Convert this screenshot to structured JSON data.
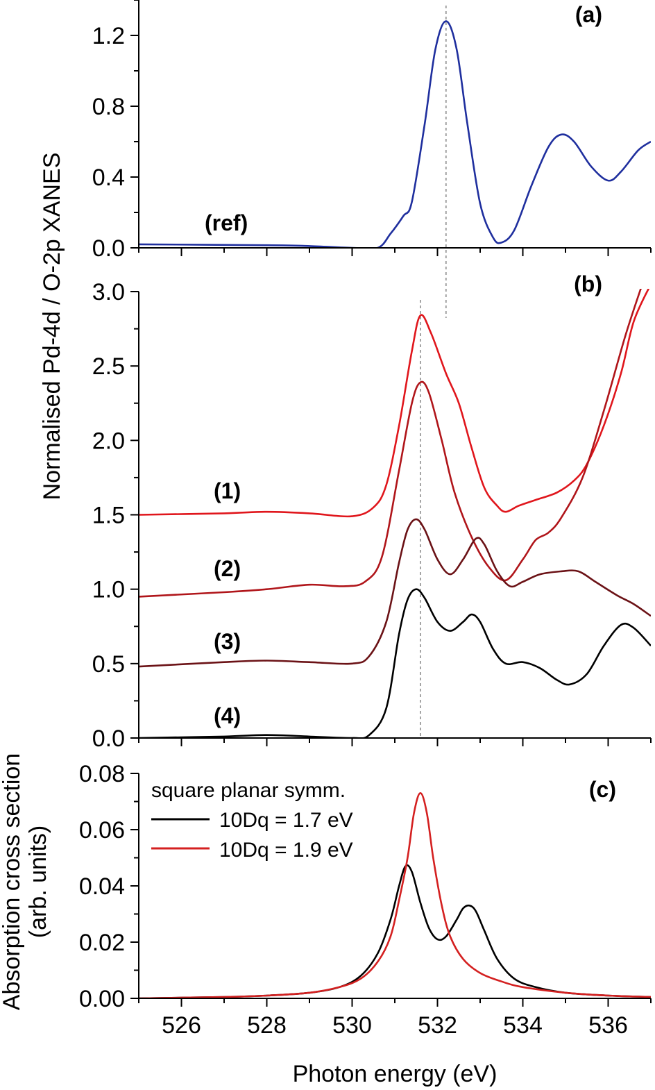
{
  "colors": {
    "ref": "#1f2f9e",
    "s1": "#e0161c",
    "s2": "#b0151a",
    "s3": "#6b1216",
    "s4": "#000000",
    "calc_17": "#000000",
    "calc_19": "#d42020",
    "guide": "#9a9a9a"
  },
  "chart_data": [
    {
      "panel": "a",
      "type": "line",
      "label": "(a)",
      "series_label": "(ref)",
      "ylim": [
        0,
        1.4
      ],
      "yticks": [
        0.0,
        0.4,
        0.8,
        1.2
      ],
      "ytick_labels": [
        "0.0",
        "0.4",
        "0.8",
        "1.2"
      ],
      "guide_x": 532.2,
      "series": [
        {
          "name": "ref",
          "color_key": "ref",
          "points": [
            [
              525,
              0.02
            ],
            [
              528,
              0.015
            ],
            [
              529,
              0.01
            ],
            [
              530,
              0.0
            ],
            [
              530.6,
              0.0
            ],
            [
              530.9,
              0.08
            ],
            [
              531.2,
              0.18
            ],
            [
              531.4,
              0.26
            ],
            [
              531.7,
              0.7
            ],
            [
              531.95,
              1.12
            ],
            [
              532.2,
              1.28
            ],
            [
              532.45,
              1.12
            ],
            [
              532.7,
              0.7
            ],
            [
              533.0,
              0.25
            ],
            [
              533.3,
              0.06
            ],
            [
              533.5,
              0.03
            ],
            [
              533.8,
              0.1
            ],
            [
              534.2,
              0.35
            ],
            [
              534.6,
              0.57
            ],
            [
              534.9,
              0.64
            ],
            [
              535.2,
              0.6
            ],
            [
              535.6,
              0.46
            ],
            [
              536.0,
              0.38
            ],
            [
              536.3,
              0.43
            ],
            [
              536.7,
              0.55
            ],
            [
              537,
              0.6
            ]
          ]
        }
      ]
    },
    {
      "panel": "b",
      "type": "line",
      "label": "(b)",
      "ylim": [
        0,
        3.0
      ],
      "yticks": [
        0.0,
        0.5,
        1.0,
        1.5,
        2.0,
        2.5,
        3.0
      ],
      "ytick_labels": [
        "0.0",
        "0.5",
        "1.0",
        "1.5",
        "2.0",
        "2.5",
        "3.0"
      ],
      "ylabel": "Normalised Pd-4d / O-2p XANES",
      "guide_x": 531.6,
      "series": [
        {
          "name": "(1)",
          "color_key": "s1",
          "points": [
            [
              525,
              1.5
            ],
            [
              527,
              1.51
            ],
            [
              528,
              1.52
            ],
            [
              529,
              1.51
            ],
            [
              530,
              1.49
            ],
            [
              530.5,
              1.55
            ],
            [
              530.8,
              1.7
            ],
            [
              531.1,
              2.1
            ],
            [
              531.4,
              2.6
            ],
            [
              531.6,
              2.84
            ],
            [
              531.85,
              2.72
            ],
            [
              532.2,
              2.45
            ],
            [
              532.5,
              2.25
            ],
            [
              532.8,
              1.95
            ],
            [
              533.1,
              1.68
            ],
            [
              533.4,
              1.56
            ],
            [
              533.6,
              1.52
            ],
            [
              533.9,
              1.56
            ],
            [
              534.3,
              1.6
            ],
            [
              534.8,
              1.65
            ],
            [
              535.2,
              1.73
            ],
            [
              535.5,
              1.84
            ],
            [
              535.9,
              2.1
            ],
            [
              536.3,
              2.45
            ],
            [
              536.6,
              2.8
            ],
            [
              537,
              3.05
            ]
          ]
        },
        {
          "name": "(2)",
          "color_key": "s2",
          "points": [
            [
              525,
              0.95
            ],
            [
              527,
              0.98
            ],
            [
              528,
              1.0
            ],
            [
              529,
              1.03
            ],
            [
              529.8,
              1.02
            ],
            [
              530.3,
              1.05
            ],
            [
              530.7,
              1.22
            ],
            [
              531.1,
              1.8
            ],
            [
              531.4,
              2.25
            ],
            [
              531.6,
              2.39
            ],
            [
              531.8,
              2.32
            ],
            [
              532.1,
              2.0
            ],
            [
              532.4,
              1.65
            ],
            [
              532.8,
              1.35
            ],
            [
              533.2,
              1.15
            ],
            [
              533.6,
              1.06
            ],
            [
              534.0,
              1.2
            ],
            [
              534.3,
              1.33
            ],
            [
              534.6,
              1.38
            ],
            [
              534.9,
              1.48
            ],
            [
              535.4,
              1.75
            ],
            [
              535.9,
              2.2
            ],
            [
              536.4,
              2.7
            ],
            [
              536.8,
              3.05
            ]
          ]
        },
        {
          "name": "(3)",
          "color_key": "s3",
          "points": [
            [
              525,
              0.48
            ],
            [
              527,
              0.51
            ],
            [
              528,
              0.52
            ],
            [
              529,
              0.51
            ],
            [
              530,
              0.5
            ],
            [
              530.4,
              0.55
            ],
            [
              530.8,
              0.78
            ],
            [
              531.1,
              1.18
            ],
            [
              531.3,
              1.4
            ],
            [
              531.5,
              1.47
            ],
            [
              531.7,
              1.4
            ],
            [
              532.0,
              1.2
            ],
            [
              532.3,
              1.1
            ],
            [
              532.6,
              1.2
            ],
            [
              532.9,
              1.34
            ],
            [
              533.1,
              1.3
            ],
            [
              533.4,
              1.12
            ],
            [
              533.7,
              1.02
            ],
            [
              534.0,
              1.05
            ],
            [
              534.4,
              1.1
            ],
            [
              534.9,
              1.12
            ],
            [
              535.3,
              1.12
            ],
            [
              535.7,
              1.05
            ],
            [
              536.2,
              0.96
            ],
            [
              536.6,
              0.9
            ],
            [
              537,
              0.82
            ]
          ]
        },
        {
          "name": "(4)",
          "color_key": "s4",
          "points": [
            [
              525,
              0.0
            ],
            [
              527,
              0.01
            ],
            [
              528,
              0.02
            ],
            [
              529,
              0.01
            ],
            [
              530,
              0.0
            ],
            [
              530.4,
              0.02
            ],
            [
              530.8,
              0.2
            ],
            [
              531.1,
              0.7
            ],
            [
              531.3,
              0.93
            ],
            [
              531.5,
              1.0
            ],
            [
              531.7,
              0.94
            ],
            [
              532.0,
              0.78
            ],
            [
              532.3,
              0.72
            ],
            [
              532.6,
              0.78
            ],
            [
              532.8,
              0.83
            ],
            [
              533.0,
              0.78
            ],
            [
              533.3,
              0.6
            ],
            [
              533.6,
              0.5
            ],
            [
              534.0,
              0.51
            ],
            [
              534.4,
              0.47
            ],
            [
              534.8,
              0.39
            ],
            [
              535.1,
              0.36
            ],
            [
              535.5,
              0.43
            ],
            [
              535.9,
              0.62
            ],
            [
              536.3,
              0.76
            ],
            [
              536.6,
              0.74
            ],
            [
              537,
              0.62
            ]
          ]
        }
      ]
    },
    {
      "panel": "c",
      "type": "line",
      "label": "(c)",
      "ylim": [
        0,
        0.08
      ],
      "yticks": [
        0.0,
        0.02,
        0.04,
        0.06,
        0.08
      ],
      "ytick_labels": [
        "0.00",
        "0.02",
        "0.04",
        "0.06",
        "0.08"
      ],
      "ylabel_line1": "Absorption cross section",
      "ylabel_line2": "(arb. units)",
      "xlabel": "Photon energy (eV)",
      "xlim": [
        525,
        537
      ],
      "xticks": [
        526,
        528,
        530,
        532,
        534,
        536
      ],
      "xtick_labels": [
        "526",
        "528",
        "530",
        "532",
        "534",
        "536"
      ],
      "legend_title": "square planar symm.",
      "series": [
        {
          "name": "10Dq = 1.7 eV",
          "color_key": "calc_17",
          "points": [
            [
              525,
              0.0
            ],
            [
              527,
              0.0005
            ],
            [
              528,
              0.001
            ],
            [
              529,
              0.002
            ],
            [
              529.7,
              0.004
            ],
            [
              530.2,
              0.008
            ],
            [
              530.6,
              0.016
            ],
            [
              530.9,
              0.028
            ],
            [
              531.1,
              0.04
            ],
            [
              531.25,
              0.047
            ],
            [
              531.4,
              0.045
            ],
            [
              531.6,
              0.034
            ],
            [
              531.8,
              0.025
            ],
            [
              532.0,
              0.021
            ],
            [
              532.2,
              0.022
            ],
            [
              532.45,
              0.028
            ],
            [
              532.6,
              0.032
            ],
            [
              532.75,
              0.033
            ],
            [
              532.9,
              0.031
            ],
            [
              533.1,
              0.024
            ],
            [
              533.4,
              0.014
            ],
            [
              533.8,
              0.007
            ],
            [
              534.3,
              0.004
            ],
            [
              535,
              0.002
            ],
            [
              536,
              0.001
            ],
            [
              537,
              0.0005
            ]
          ]
        },
        {
          "name": "10Dq = 1.9 eV",
          "color_key": "calc_19",
          "points": [
            [
              525,
              0.0
            ],
            [
              527,
              0.0005
            ],
            [
              528,
              0.001
            ],
            [
              529,
              0.002
            ],
            [
              529.7,
              0.004
            ],
            [
              530.2,
              0.007
            ],
            [
              530.6,
              0.013
            ],
            [
              530.9,
              0.022
            ],
            [
              531.1,
              0.035
            ],
            [
              531.3,
              0.05
            ],
            [
              531.45,
              0.066
            ],
            [
              531.6,
              0.073
            ],
            [
              531.75,
              0.066
            ],
            [
              531.9,
              0.05
            ],
            [
              532.1,
              0.033
            ],
            [
              532.3,
              0.022
            ],
            [
              532.6,
              0.014
            ],
            [
              533.0,
              0.009
            ],
            [
              533.5,
              0.006
            ],
            [
              534.0,
              0.004
            ],
            [
              535,
              0.002
            ],
            [
              536,
              0.001
            ],
            [
              537,
              0.0005
            ]
          ]
        }
      ]
    }
  ]
}
